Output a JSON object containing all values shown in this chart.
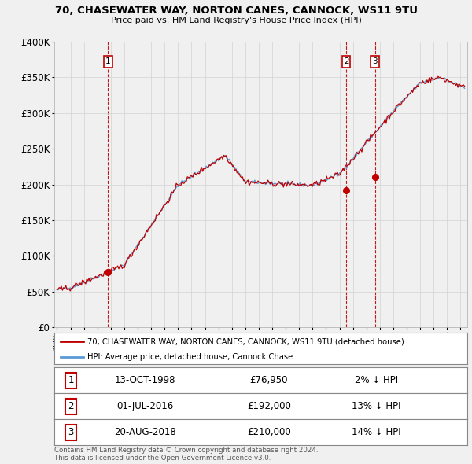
{
  "title_line1": "70, CHASEWATER WAY, NORTON CANES, CANNOCK, WS11 9TU",
  "title_line2": "Price paid vs. HM Land Registry's House Price Index (HPI)",
  "ylim": [
    0,
    400000
  ],
  "yticks": [
    0,
    50000,
    100000,
    150000,
    200000,
    250000,
    300000,
    350000,
    400000
  ],
  "ytick_labels": [
    "£0",
    "£50K",
    "£100K",
    "£150K",
    "£200K",
    "£250K",
    "£300K",
    "£350K",
    "£400K"
  ],
  "xlim_start": 1994.8,
  "xlim_end": 2025.5,
  "sale_dates": [
    1998.79,
    2016.5,
    2018.64
  ],
  "sale_prices": [
    76950,
    192000,
    210000
  ],
  "sale_labels": [
    "1",
    "2",
    "3"
  ],
  "hpi_line_color": "#5b9bd5",
  "price_line_color": "#c00000",
  "sale_marker_color": "#c00000",
  "vline_color": "#c00000",
  "grid_color": "#d3d3d3",
  "legend_house": "70, CHASEWATER WAY, NORTON CANES, CANNOCK, WS11 9TU (detached house)",
  "legend_hpi": "HPI: Average price, detached house, Cannock Chase",
  "table_entries": [
    {
      "label": "1",
      "date": "13-OCT-1998",
      "price": "£76,950",
      "note": "2% ↓ HPI"
    },
    {
      "label": "2",
      "date": "01-JUL-2016",
      "price": "£192,000",
      "note": "13% ↓ HPI"
    },
    {
      "label": "3",
      "date": "20-AUG-2018",
      "price": "£210,000",
      "note": "14% ↓ HPI"
    }
  ],
  "footnote_line1": "Contains HM Land Registry data © Crown copyright and database right 2024.",
  "footnote_line2": "This data is licensed under the Open Government Licence v3.0.",
  "bg_color": "#f0f0f0",
  "plot_bg_color": "#f0f0f0"
}
